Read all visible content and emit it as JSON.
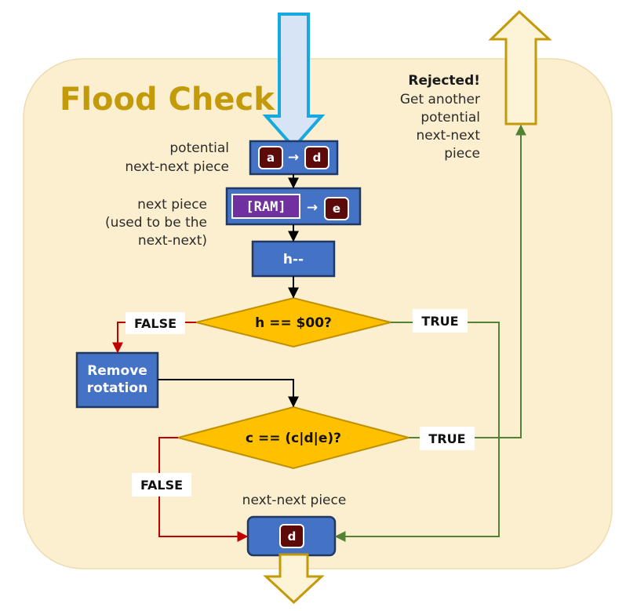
{
  "title": "Flood Check",
  "rejected": {
    "heading": "Rejected!",
    "lines": [
      "Get another",
      "potential",
      "next-next",
      "piece"
    ]
  },
  "labels": {
    "potential_next_next": [
      "potential",
      "next-next piece"
    ],
    "next_piece": [
      "next piece",
      "(used to be the",
      "next-next)"
    ],
    "next_next_piece": "next-next piece"
  },
  "boxes": {
    "potential": {
      "from": "a",
      "arrow": "→",
      "to": "d"
    },
    "next": {
      "ram": "[RAM]",
      "arrow": "→",
      "to": "e"
    },
    "decrement": "h--",
    "remove_rotation": [
      "Remove",
      "rotation"
    ],
    "result": {
      "piece": "d"
    }
  },
  "decisions": {
    "h_zero": "h == $00?",
    "c_match": "c == (c|d|e)?"
  },
  "branches": {
    "h_false": "FALSE",
    "h_true": "TRUE",
    "c_true": "TRUE",
    "c_false": "FALSE"
  },
  "colors": {
    "panel": "#fcefcf",
    "title": "#c39a0a",
    "box_fill": "#4472c4",
    "box_border": "#1f3864",
    "diamond_fill": "#ffc000",
    "diamond_border": "#bf9000",
    "piece_fill": "#5c0a0a",
    "ram_fill": "#7030a0",
    "false_line": "#c00000",
    "true_line": "#548235",
    "input_arrow_fill": "#d6e4f5",
    "input_arrow_border": "#16a8e0",
    "output_arrow_fill": "#fdf3d6",
    "output_arrow_border": "#c39a0a"
  }
}
